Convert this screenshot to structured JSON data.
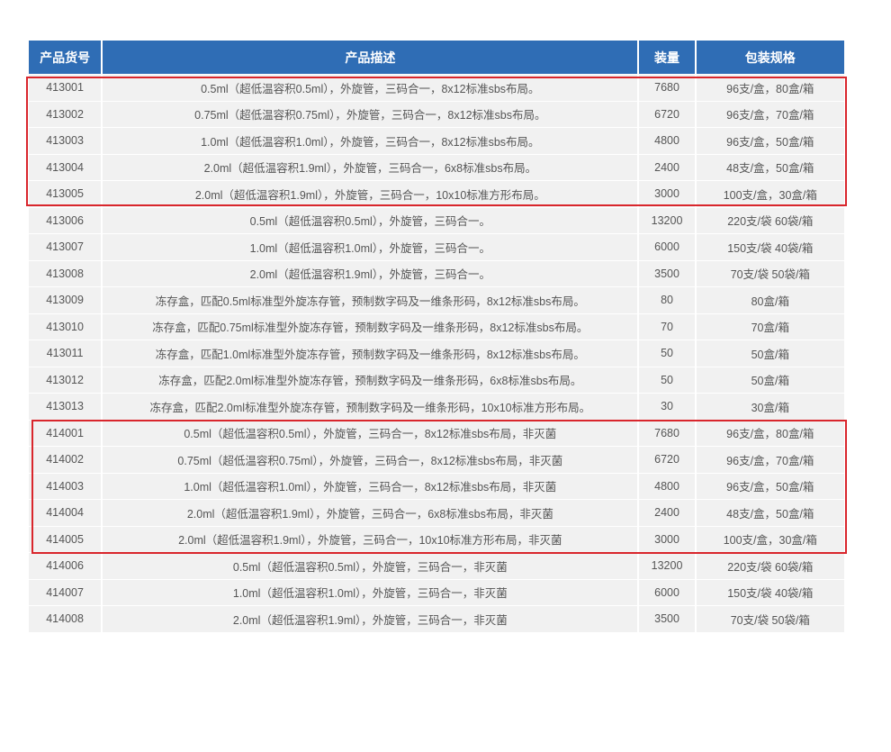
{
  "table": {
    "headers": [
      "产品货号",
      "产品描述",
      "装量",
      "包装规格"
    ],
    "rows": [
      [
        "413001",
        "0.5ml（超低温容积0.5ml），外旋管，三码合一，8x12标准sbs布局。",
        "7680",
        "96支/盒，80盒/箱"
      ],
      [
        "413002",
        "0.75ml（超低温容积0.75ml），外旋管，三码合一，8x12标准sbs布局。",
        "6720",
        "96支/盒，70盒/箱"
      ],
      [
        "413003",
        "1.0ml（超低温容积1.0ml），外旋管，三码合一，8x12标准sbs布局。",
        "4800",
        "96支/盒，50盒/箱"
      ],
      [
        "413004",
        "2.0ml（超低温容积1.9ml），外旋管，三码合一，6x8标准sbs布局。",
        "2400",
        "48支/盒，50盒/箱"
      ],
      [
        "413005",
        "2.0ml（超低温容积1.9ml），外旋管，三码合一，10x10标准方形布局。",
        "3000",
        "100支/盒，30盒/箱"
      ],
      [
        "413006",
        "0.5ml（超低温容积0.5ml），外旋管，三码合一。",
        "13200",
        "220支/袋 60袋/箱"
      ],
      [
        "413007",
        "1.0ml（超低温容积1.0ml），外旋管，三码合一。",
        "6000",
        "150支/袋 40袋/箱"
      ],
      [
        "413008",
        "2.0ml（超低温容积1.9ml），外旋管，三码合一。",
        "3500",
        "70支/袋 50袋/箱"
      ],
      [
        "413009",
        "冻存盒，匹配0.5ml标准型外旋冻存管，预制数字码及一维条形码，8x12标准sbs布局。",
        "80",
        "80盒/箱"
      ],
      [
        "413010",
        "冻存盒，匹配0.75ml标准型外旋冻存管，预制数字码及一维条形码，8x12标准sbs布局。",
        "70",
        "70盒/箱"
      ],
      [
        "413011",
        "冻存盒，匹配1.0ml标准型外旋冻存管，预制数字码及一维条形码，8x12标准sbs布局。",
        "50",
        "50盒/箱"
      ],
      [
        "413012",
        "冻存盒，匹配2.0ml标准型外旋冻存管，预制数字码及一维条形码，6x8标准sbs布局。",
        "50",
        "50盒/箱"
      ],
      [
        "413013",
        "冻存盒，匹配2.0ml标准型外旋冻存管，预制数字码及一维条形码，10x10标准方形布局。",
        "30",
        "30盒/箱"
      ],
      [
        "414001",
        "0.5ml（超低温容积0.5ml），外旋管，三码合一，8x12标准sbs布局，非灭菌",
        "7680",
        "96支/盒，80盒/箱"
      ],
      [
        "414002",
        "0.75ml（超低温容积0.75ml），外旋管，三码合一，8x12标准sbs布局，非灭菌",
        "6720",
        "96支/盒，70盒/箱"
      ],
      [
        "414003",
        "1.0ml（超低温容积1.0ml），外旋管，三码合一，8x12标准sbs布局，非灭菌",
        "4800",
        "96支/盒，50盒/箱"
      ],
      [
        "414004",
        "2.0ml（超低温容积1.9ml），外旋管，三码合一，6x8标准sbs布局，非灭菌",
        "2400",
        "48支/盒，50盒/箱"
      ],
      [
        "414005",
        "2.0ml（超低温容积1.9ml），外旋管，三码合一，10x10标准方形布局，非灭菌",
        "3000",
        "100支/盒，30盒/箱"
      ],
      [
        "414006",
        "0.5ml（超低温容积0.5ml），外旋管，三码合一，非灭菌",
        "13200",
        "220支/袋 60袋/箱"
      ],
      [
        "414007",
        "1.0ml（超低温容积1.0ml），外旋管，三码合一，非灭菌",
        "6000",
        "150支/袋 40袋/箱"
      ],
      [
        "414008",
        "2.0ml（超低温容积1.9ml），外旋管，三码合一，非灭菌",
        "3500",
        "70支/袋 50袋/箱"
      ]
    ]
  },
  "colors": {
    "header_bg": "#2f6db5",
    "row_bg": "#f1f1f1",
    "highlight": "#d9262c"
  }
}
